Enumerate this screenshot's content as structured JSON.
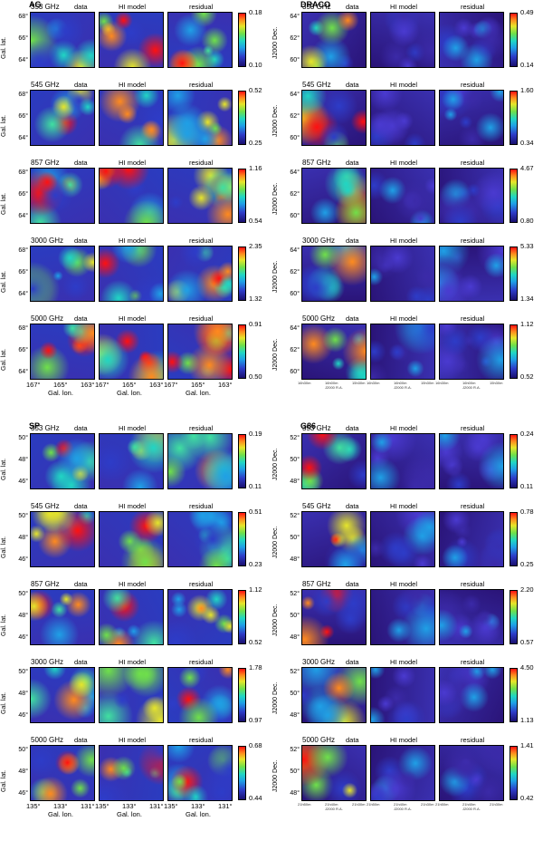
{
  "panel_labels": {
    "data": "data",
    "model": "HI model",
    "residual": "residual"
  },
  "regions": [
    {
      "title": "AG",
      "ylabel": "Gal. lat.",
      "xlabel": "Gal. lon.",
      "yticks": [
        "68°",
        "66°",
        "64°"
      ],
      "xticks": [
        "167°",
        "165°",
        "163°"
      ],
      "rows": [
        {
          "freq": "353 GHz",
          "cmax": "0.18",
          "cmin": "0.10"
        },
        {
          "freq": "545 GHz",
          "cmax": "0.52",
          "cmin": "0.25"
        },
        {
          "freq": "857 GHz",
          "cmax": "1.16",
          "cmin": "0.54"
        },
        {
          "freq": "3000 GHz",
          "cmax": "2.35",
          "cmin": "1.32"
        },
        {
          "freq": "5000 GHz",
          "cmax": "0.91",
          "cmin": "0.50"
        }
      ]
    },
    {
      "title": "DRACO",
      "ylabel": "J2000 Dec.",
      "xlabel": "J2000 R.A.",
      "yticks": [
        "64°",
        "62°",
        "60°"
      ],
      "xticks": [
        "16h30m",
        "16h00m",
        "15h30m"
      ],
      "rows": [
        {
          "freq": "353 GHz",
          "cmax": "0.49",
          "cmin": "0.14"
        },
        {
          "freq": "545 GHz",
          "cmax": "1.60",
          "cmin": "0.34"
        },
        {
          "freq": "857 GHz",
          "cmax": "4.67",
          "cmin": "0.80"
        },
        {
          "freq": "3000 GHz",
          "cmax": "5.33",
          "cmin": "1.34"
        },
        {
          "freq": "5000 GHz",
          "cmax": "1.12",
          "cmin": "0.52"
        }
      ]
    },
    {
      "title": "SP",
      "ylabel": "Gal. lat.",
      "xlabel": "Gal. lon.",
      "yticks": [
        "50°",
        "48°",
        "46°"
      ],
      "xticks": [
        "135°",
        "133°",
        "131°"
      ],
      "rows": [
        {
          "freq": "353 GHz",
          "cmax": "0.19",
          "cmin": "0.11"
        },
        {
          "freq": "545 GHz",
          "cmax": "0.51",
          "cmin": "0.23"
        },
        {
          "freq": "857 GHz",
          "cmax": "1.12",
          "cmin": "0.52"
        },
        {
          "freq": "3000 GHz",
          "cmax": "1.78",
          "cmin": "0.97"
        },
        {
          "freq": "5000 GHz",
          "cmax": "0.68",
          "cmin": "0.44"
        }
      ]
    },
    {
      "title": "G86",
      "ylabel": "J2000 Dec.",
      "xlabel": "J2000 R.A.",
      "yticks": [
        "52°",
        "50°",
        "48°"
      ],
      "xticks": [
        "21h50m",
        "21h40m",
        "21h30m"
      ],
      "rows": [
        {
          "freq": "353 GHz",
          "cmax": "0.24",
          "cmin": "0.11"
        },
        {
          "freq": "545 GHz",
          "cmax": "0.78",
          "cmin": "0.25"
        },
        {
          "freq": "857 GHz",
          "cmax": "2.20",
          "cmin": "0.57"
        },
        {
          "freq": "3000 GHz",
          "cmax": "4.50",
          "cmin": "1.13"
        },
        {
          "freq": "5000 GHz",
          "cmax": "1.41",
          "cmin": "0.42"
        }
      ]
    }
  ]
}
